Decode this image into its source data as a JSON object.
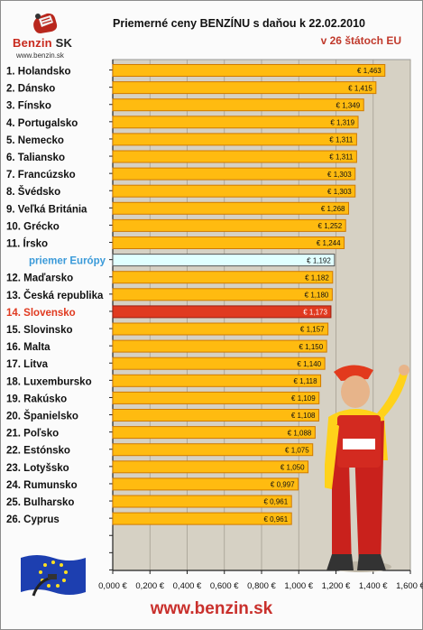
{
  "logo": {
    "brand_main": "Benzin",
    "brand_suffix": "SK",
    "site": "www.benzin.sk"
  },
  "footer": {
    "url": "www.benzin.sk"
  },
  "colors": {
    "bar": "#ffbb10",
    "bar_border": "#d07a00",
    "average": "#e0ffff",
    "average_label": "#3a9ad9",
    "highlight": "#e03a20",
    "highlight_label": "#e03a20",
    "plot_bg": "#d6d1c4"
  },
  "chart_data": {
    "type": "bar",
    "orientation": "horizontal",
    "title": "Priemerné ceny BENZÍNU s daňou k 22.02.2010",
    "subtitle": "v 26 štátoch EU",
    "xlim": [
      0,
      1.6
    ],
    "ticks": [
      "0,000 €",
      "0,200 €",
      "0,400 €",
      "0,600 €",
      "0,800 €",
      "1,000 €",
      "1,200 €",
      "1,400 €",
      "1,600 €"
    ],
    "categories": [
      "1. Holandsko",
      "2. Dánsko",
      "3. Fínsko",
      "4. Portugalsko",
      "5. Nemecko",
      "6. Taliansko",
      "7. Francúzsko",
      "8. Švédsko",
      "9. Veľká Británia",
      "10. Grécko",
      "11. Írsko",
      "priemer Európy",
      "12. Maďarsko",
      "13. Česká republika",
      "14. Slovensko",
      "15. Slovinsko",
      "16. Malta",
      "17. Litva",
      "18. Luxembursko",
      "19. Rakúsko",
      "20. Španielsko",
      "21. Poľsko",
      "22. Estónsko",
      "23. Lotyšsko",
      "24. Rumunsko",
      "25. Bulharsko",
      "26. Cyprus"
    ],
    "values": [
      1.463,
      1.415,
      1.349,
      1.319,
      1.311,
      1.311,
      1.303,
      1.303,
      1.268,
      1.252,
      1.244,
      1.192,
      1.182,
      1.18,
      1.173,
      1.157,
      1.15,
      1.14,
      1.118,
      1.109,
      1.108,
      1.088,
      1.075,
      1.05,
      0.997,
      0.961,
      0.961
    ],
    "value_labels": [
      "€ 1,463",
      "€ 1,415",
      "€ 1,349",
      "€ 1,319",
      "€ 1,311",
      "€ 1,311",
      "€ 1,303",
      "€ 1,303",
      "€ 1,268",
      "€ 1,252",
      "€ 1,244",
      "€ 1,192",
      "€ 1,182",
      "€ 1,180",
      "€ 1,173",
      "€ 1,157",
      "€ 1,150",
      "€ 1,140",
      "€ 1,118",
      "€ 1,109",
      "€ 1,108",
      "€ 1,088",
      "€ 1,075",
      "€ 1,050",
      "€ 0,997",
      "€ 0,961",
      "€ 0,961"
    ],
    "average_index": 11,
    "highlight_index": 14,
    "grid": true
  }
}
